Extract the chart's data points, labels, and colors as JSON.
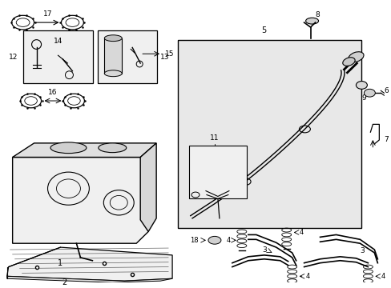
{
  "bg_color": "#ffffff",
  "lc": "#000000",
  "fig_width": 4.89,
  "fig_height": 3.6,
  "dpi": 100
}
